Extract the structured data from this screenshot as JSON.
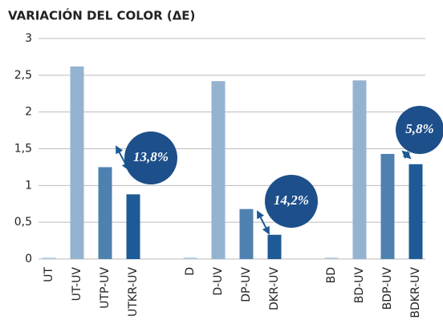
{
  "chart_data": {
    "type": "bar",
    "title": "VARIACIÓN DEL COLOR (ΔE)",
    "categories": [
      "UT",
      "UT-UV",
      "UTP-UV",
      "UTKR-UV",
      "D",
      "D-UV",
      "DP-UV",
      "DKR-UV",
      "BD",
      "BD-UV",
      "BDP-UV",
      "BDKR-UV"
    ],
    "values": [
      0.02,
      2.62,
      1.25,
      0.88,
      0.02,
      2.42,
      0.68,
      0.33,
      0.02,
      2.43,
      1.43,
      1.29
    ],
    "colors": [
      "#b7cbe0",
      "#94b3d0",
      "#4f81b0",
      "#1d5a96",
      "#b7cbe0",
      "#94b3d0",
      "#4f81b0",
      "#1d5a96",
      "#b7cbe0",
      "#94b3d0",
      "#4f81b0",
      "#1d5a96"
    ],
    "ylim": [
      0,
      3
    ],
    "yticks": [
      0,
      {
        "value": 0.5,
        "label": "0,5"
      },
      1,
      {
        "value": 1.5,
        "label": "1,5"
      },
      2,
      {
        "value": 2.5,
        "label": "2,5"
      },
      3
    ],
    "grid": true,
    "annotations": [
      "13,8%",
      "14,2%",
      "5,8%"
    ]
  }
}
